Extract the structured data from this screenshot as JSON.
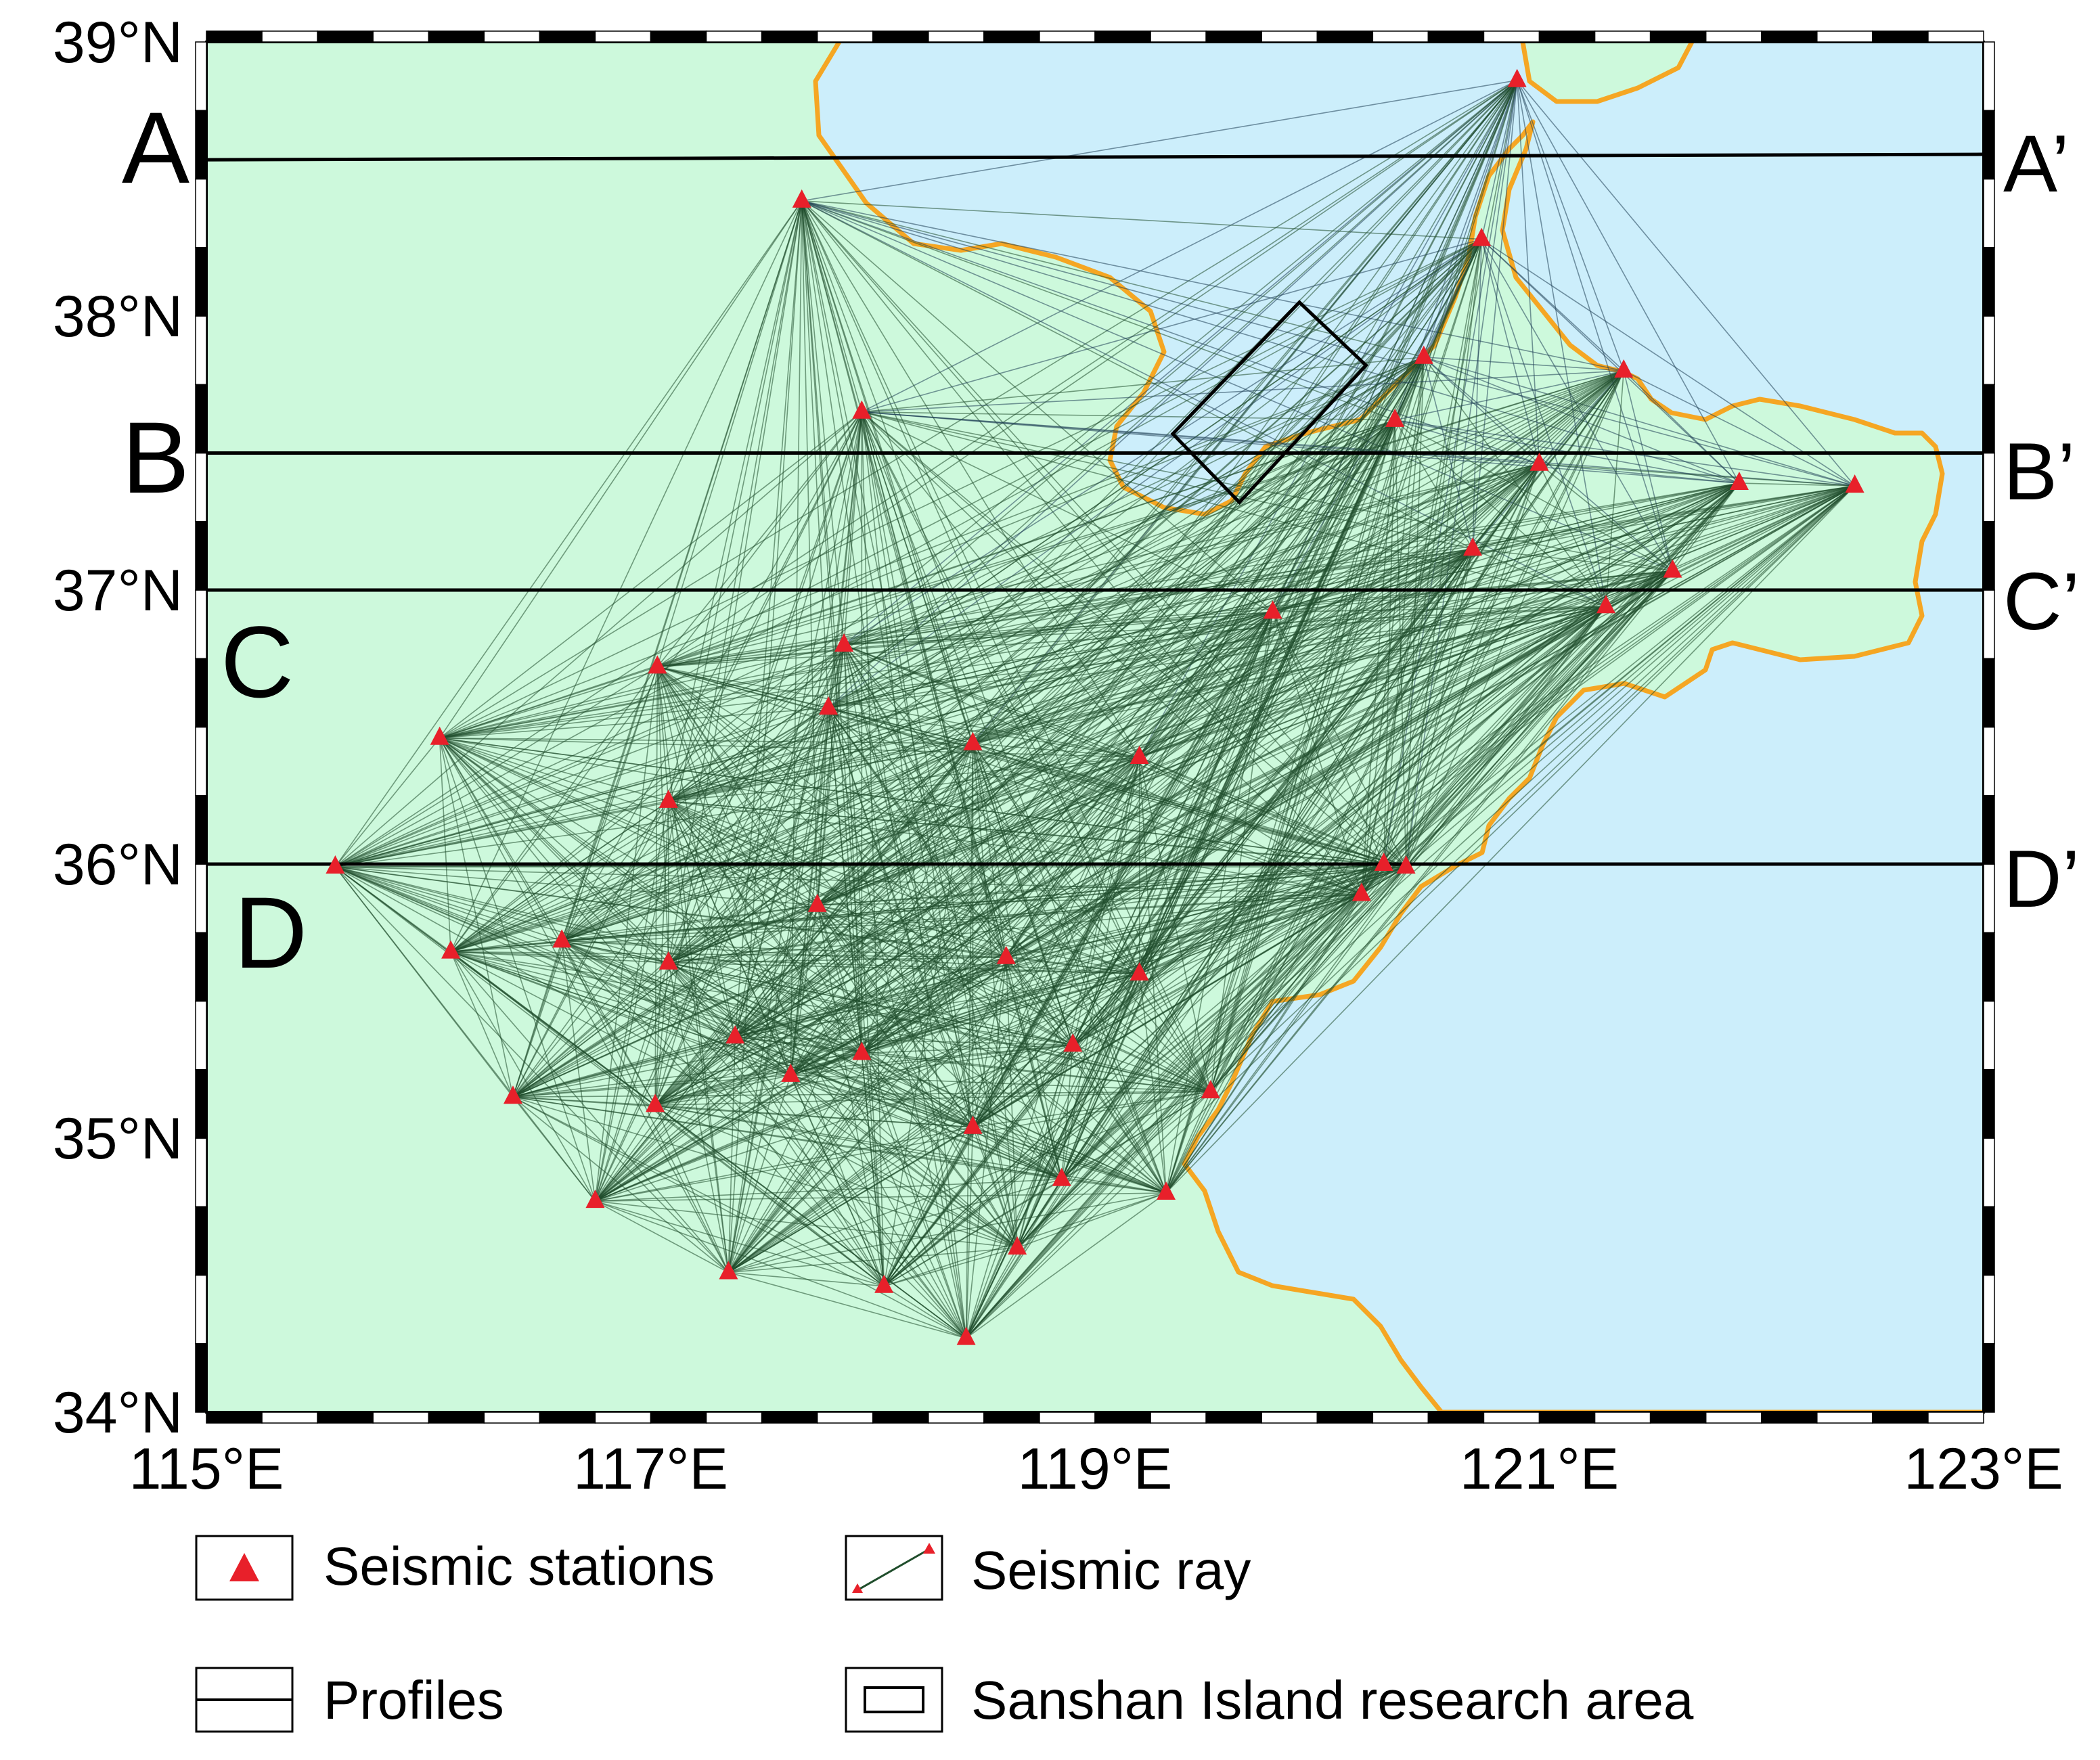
{
  "map": {
    "lat_range": [
      34,
      39
    ],
    "lon_range": [
      115,
      123
    ],
    "colors": {
      "land": "#cdf9dc",
      "sea": "#cceefb",
      "coastline": "#f5a623",
      "ray_land": "#1f4d2b",
      "ray_sea": "#1f3f55",
      "station": "#e8202a",
      "profile": "#000000",
      "frame": "#000000"
    },
    "lat_ticks": [
      {
        "value": 39,
        "label": "39°N"
      },
      {
        "value": 38,
        "label": "38°N"
      },
      {
        "value": 37,
        "label": "37°N"
      },
      {
        "value": 36,
        "label": "36°N"
      },
      {
        "value": 35,
        "label": "35°N"
      },
      {
        "value": 34,
        "label": "34°N"
      }
    ],
    "lon_ticks": [
      {
        "value": 115,
        "label": "115°E"
      },
      {
        "value": 117,
        "label": "117°E"
      },
      {
        "value": 119,
        "label": "119°E"
      },
      {
        "value": 121,
        "label": "121°E"
      },
      {
        "value": 123,
        "label": "123°E"
      }
    ],
    "profiles": [
      {
        "start": "A",
        "end": "A’",
        "start_lat": 38.57,
        "end_lat": 38.59
      },
      {
        "start": "B",
        "end": "B’",
        "start_lat": 37.5,
        "end_lat": 37.5
      },
      {
        "start": "C",
        "end": "C’",
        "start_lat": 37.0,
        "end_lat": 37.0
      },
      {
        "start": "D",
        "end": "D’",
        "start_lat": 36.0,
        "end_lat": 36.0
      }
    ],
    "stations": [
      [
        120.9,
        38.86
      ],
      [
        117.68,
        38.42
      ],
      [
        120.74,
        38.28
      ],
      [
        120.48,
        37.85
      ],
      [
        121.38,
        37.8
      ],
      [
        117.95,
        37.65
      ],
      [
        120.35,
        37.62
      ],
      [
        121.0,
        37.46
      ],
      [
        121.9,
        37.39
      ],
      [
        122.42,
        37.38
      ],
      [
        120.7,
        37.15
      ],
      [
        121.6,
        37.07
      ],
      [
        119.8,
        36.92
      ],
      [
        121.3,
        36.94
      ],
      [
        117.87,
        36.8
      ],
      [
        117.03,
        36.72
      ],
      [
        117.8,
        36.57
      ],
      [
        118.45,
        36.44
      ],
      [
        119.2,
        36.39
      ],
      [
        116.05,
        36.46
      ],
      [
        117.08,
        36.23
      ],
      [
        115.58,
        35.99
      ],
      [
        120.3,
        36.0
      ],
      [
        120.4,
        35.99
      ],
      [
        120.2,
        35.89
      ],
      [
        117.75,
        35.85
      ],
      [
        116.1,
        35.68
      ],
      [
        116.6,
        35.72
      ],
      [
        117.08,
        35.64
      ],
      [
        118.6,
        35.66
      ],
      [
        119.2,
        35.6
      ],
      [
        117.38,
        35.37
      ],
      [
        117.95,
        35.31
      ],
      [
        118.9,
        35.34
      ],
      [
        117.63,
        35.23
      ],
      [
        116.38,
        35.15
      ],
      [
        117.02,
        35.12
      ],
      [
        119.52,
        35.17
      ],
      [
        118.45,
        35.04
      ],
      [
        118.85,
        34.85
      ],
      [
        119.32,
        34.8
      ],
      [
        116.75,
        34.77
      ],
      [
        117.35,
        34.51
      ],
      [
        118.05,
        34.46
      ],
      [
        118.65,
        34.6
      ],
      [
        118.42,
        34.27
      ]
    ],
    "research_area_box": {
      "corners": [
        [
          119.92,
          38.05
        ],
        [
          120.22,
          37.82
        ],
        [
          119.65,
          37.32
        ],
        [
          119.35,
          37.57
        ]
      ]
    }
  },
  "legend": {
    "stations_label": "Seismic stations",
    "ray_label": "Seismic ray",
    "profiles_label": "Profiles",
    "research_area_label": "Sanshan Island research area"
  }
}
